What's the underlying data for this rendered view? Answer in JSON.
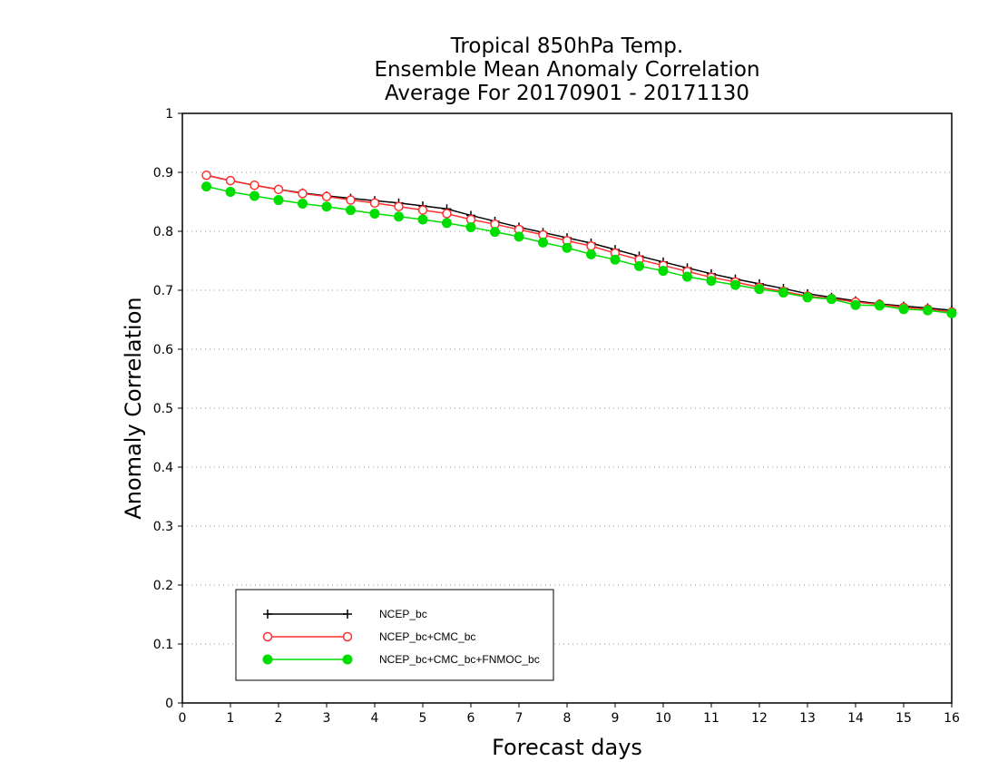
{
  "chart_data": {
    "type": "line",
    "title": [
      "Tropical 850hPa Temp.",
      "Ensemble Mean Anomaly Correlation",
      "Average For 20170901 - 20171130"
    ],
    "xlabel": "Forecast days",
    "ylabel": "Anomaly Correlation",
    "xlim": [
      0,
      16
    ],
    "ylim": [
      0,
      1
    ],
    "xticks": [
      "0",
      "1",
      "2",
      "3",
      "4",
      "5",
      "6",
      "7",
      "8",
      "9",
      "10",
      "11",
      "12",
      "13",
      "14",
      "15",
      "16"
    ],
    "yticks": [
      "0",
      "0.1",
      "0.2",
      "0.3",
      "0.4",
      "0.5",
      "0.6",
      "0.7",
      "0.8",
      "0.9",
      "1"
    ],
    "grid": "horizontal-dotted",
    "legend_position": "lower-left",
    "x": [
      0.5,
      1,
      1.5,
      2,
      2.5,
      3,
      3.5,
      4,
      4.5,
      5,
      5.5,
      6,
      6.5,
      7,
      7.5,
      8,
      8.5,
      9,
      9.5,
      10,
      10.5,
      11,
      11.5,
      12,
      12.5,
      13,
      13.5,
      14,
      14.5,
      15,
      15.5,
      16
    ],
    "series": [
      {
        "name": "NCEP_bc",
        "color": "#000000",
        "marker": "plus",
        "values": [
          0.895,
          0.886,
          0.878,
          0.871,
          0.865,
          0.86,
          0.856,
          0.852,
          0.848,
          0.843,
          0.838,
          0.827,
          0.817,
          0.807,
          0.798,
          0.789,
          0.78,
          0.769,
          0.758,
          0.748,
          0.738,
          0.728,
          0.719,
          0.711,
          0.703,
          0.694,
          0.688,
          0.682,
          0.677,
          0.673,
          0.67,
          0.666
        ]
      },
      {
        "name": "NCEP_bc+CMC_bc",
        "color": "#ff3030",
        "marker": "open-circle",
        "values": [
          0.895,
          0.886,
          0.878,
          0.871,
          0.864,
          0.859,
          0.853,
          0.848,
          0.842,
          0.836,
          0.83,
          0.82,
          0.812,
          0.803,
          0.794,
          0.784,
          0.775,
          0.763,
          0.752,
          0.742,
          0.732,
          0.722,
          0.714,
          0.705,
          0.698,
          0.69,
          0.686,
          0.68,
          0.676,
          0.671,
          0.668,
          0.663
        ]
      },
      {
        "name": "NCEP_bc+CMC_bc+FNMOC_bc",
        "color": "#00dd00",
        "marker": "filled-circle",
        "values": [
          0.876,
          0.867,
          0.86,
          0.853,
          0.847,
          0.842,
          0.836,
          0.83,
          0.825,
          0.82,
          0.814,
          0.807,
          0.799,
          0.791,
          0.781,
          0.772,
          0.761,
          0.752,
          0.741,
          0.733,
          0.723,
          0.716,
          0.709,
          0.702,
          0.696,
          0.688,
          0.685,
          0.675,
          0.674,
          0.668,
          0.666,
          0.661
        ]
      }
    ]
  }
}
